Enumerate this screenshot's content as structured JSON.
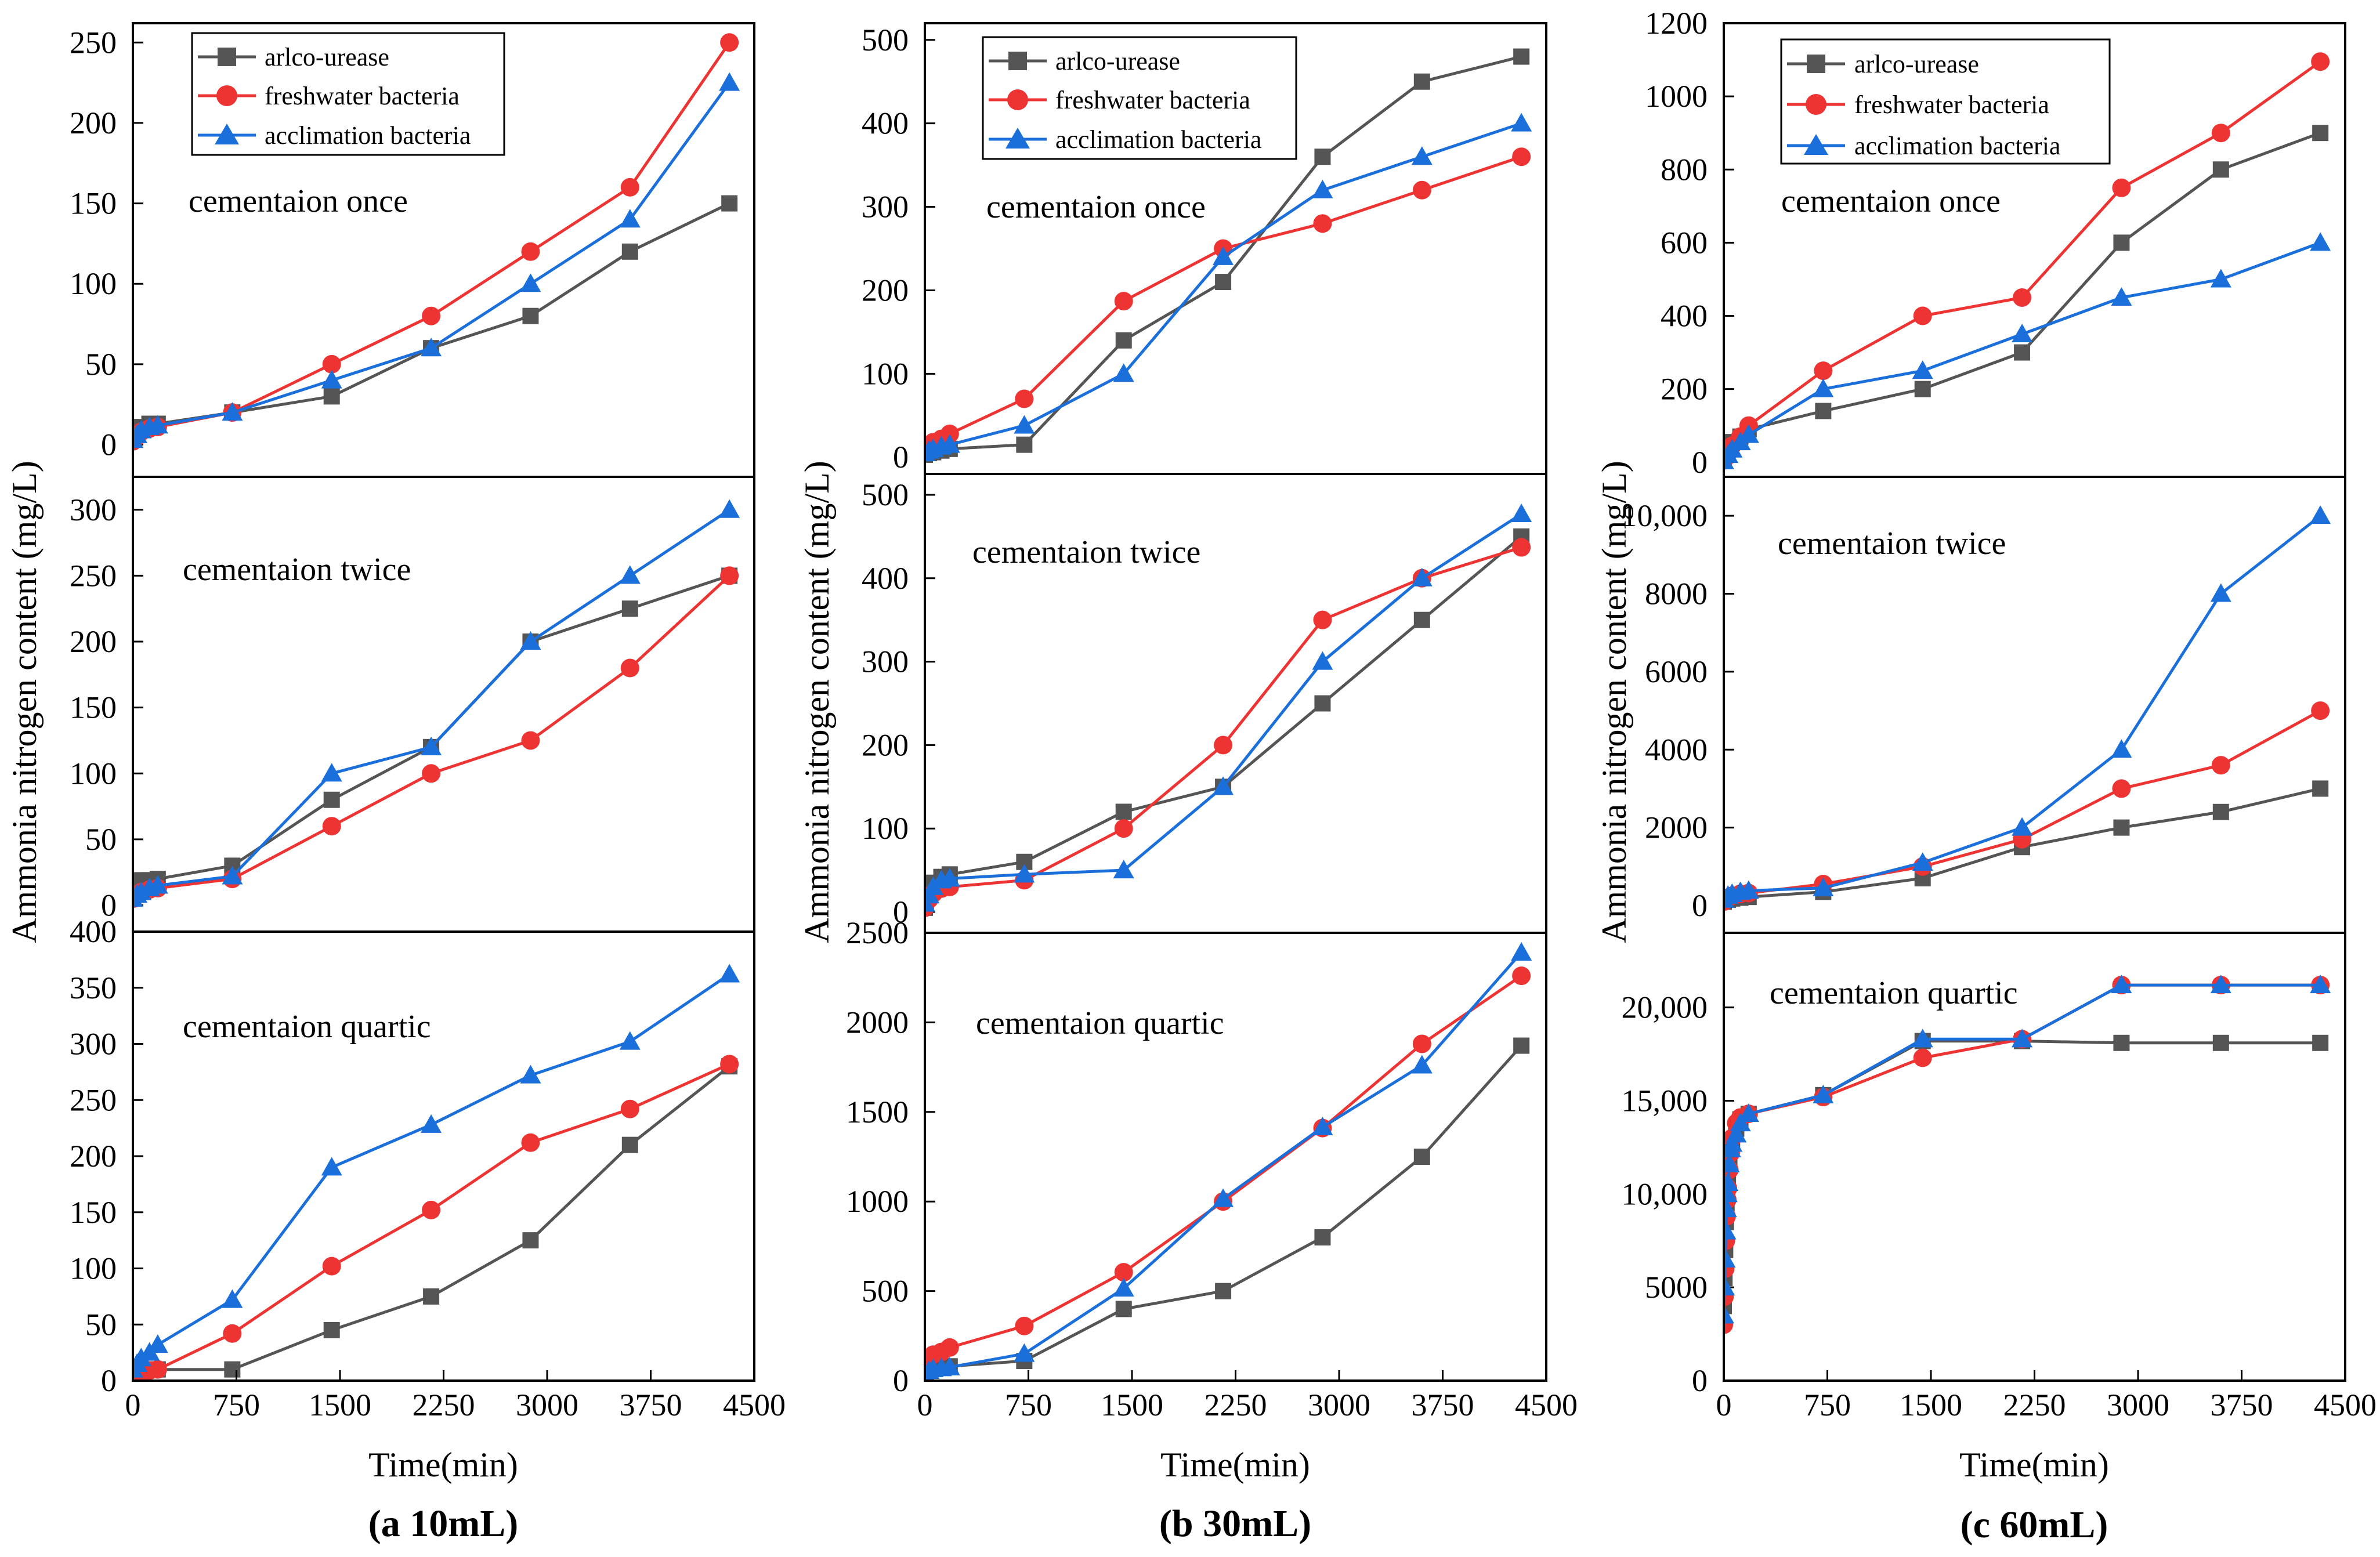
{
  "ylabel": "Ammonia nitrogen content (mg/L)",
  "xlabel": "Time(min)",
  "colors": {
    "arlco": "#555555",
    "fresh": "#ee3333",
    "accl": "#1a6fdb"
  },
  "legend": [
    "arlco-urease",
    "freshwater bacteria",
    "acclimation bacteria"
  ],
  "chart_data": [
    {
      "type": "line",
      "caption": "(a 10mL)",
      "x_ticks": [
        "0",
        "750",
        "1500",
        "2250",
        "3000",
        "3750",
        "4500"
      ],
      "xlim": [
        0,
        4500
      ],
      "subplots": [
        {
          "label": "cementaion once",
          "ylim": [
            -20,
            262
          ],
          "y_ticks": [
            "0",
            "50",
            "100",
            "150",
            "200",
            "250"
          ],
          "x": [
            0,
            30,
            60,
            120,
            180,
            720,
            1440,
            2160,
            2880,
            3600,
            4320
          ],
          "series": [
            {
              "name": "arlco-urease",
              "values": [
                5,
                9,
                11,
                13,
                13,
                20,
                30,
                60,
                80,
                120,
                150
              ]
            },
            {
              "name": "freshwater bacteria",
              "values": [
                2,
                5,
                8,
                10,
                11,
                20,
                50,
                80,
                120,
                160,
                250
              ]
            },
            {
              "name": "acclimation bacteria",
              "values": [
                3,
                6,
                9,
                11,
                12,
                20,
                40,
                60,
                100,
                140,
                225
              ]
            }
          ]
        },
        {
          "label": "cementaion twice",
          "ylim": [
            -20,
            325
          ],
          "y_ticks": [
            "0",
            "50",
            "100",
            "150",
            "200",
            "250",
            "300"
          ],
          "x": [
            0,
            30,
            60,
            120,
            180,
            720,
            1440,
            2160,
            2880,
            3600,
            4320
          ],
          "series": [
            {
              "name": "arlco-urease",
              "values": [
                18,
                18,
                19,
                19,
                20,
                30,
                80,
                120,
                200,
                225,
                250
              ]
            },
            {
              "name": "freshwater bacteria",
              "values": [
                5,
                8,
                10,
                12,
                13,
                20,
                60,
                100,
                125,
                180,
                250
              ]
            },
            {
              "name": "acclimation bacteria",
              "values": [
                5,
                8,
                10,
                13,
                15,
                22,
                100,
                120,
                200,
                250,
                300
              ]
            }
          ]
        },
        {
          "label": "cementaion quartic",
          "ylim": [
            0,
            400
          ],
          "y_ticks": [
            "0",
            "50",
            "100",
            "150",
            "200",
            "250",
            "300",
            "350",
            "400"
          ],
          "x": [
            0,
            30,
            60,
            120,
            180,
            720,
            1440,
            2160,
            2880,
            3600,
            4320
          ],
          "series": [
            {
              "name": "arlco-urease",
              "values": [
                10,
                10,
                10,
                10,
                10,
                10,
                45,
                75,
                125,
                210,
                280
              ]
            },
            {
              "name": "freshwater bacteria",
              "values": [
                5,
                7,
                8,
                9,
                10,
                42,
                102,
                152,
                212,
                242,
                282
              ]
            },
            {
              "name": "acclimation bacteria",
              "values": [
                10,
                15,
                20,
                25,
                32,
                72,
                190,
                228,
                272,
                302,
                362
              ]
            }
          ]
        }
      ]
    },
    {
      "type": "line",
      "caption": "(b 30mL)",
      "x_ticks": [
        "0",
        "750",
        "1500",
        "2250",
        "3000",
        "3750",
        "4500"
      ],
      "xlim": [
        0,
        4500
      ],
      "subplots": [
        {
          "label": "cementaion once",
          "ylim": [
            -20,
            520
          ],
          "y_ticks": [
            "0",
            "100",
            "200",
            "300",
            "400",
            "500"
          ],
          "x": [
            0,
            30,
            60,
            120,
            180,
            720,
            1440,
            2160,
            2880,
            3600,
            4320
          ],
          "series": [
            {
              "name": "arlco-urease",
              "values": [
                3,
                5,
                6,
                8,
                10,
                15,
                140,
                210,
                360,
                450,
                480
              ]
            },
            {
              "name": "freshwater bacteria",
              "values": [
                10,
                15,
                18,
                22,
                28,
                70,
                187,
                250,
                280,
                320,
                360
              ]
            },
            {
              "name": "acclimation bacteria",
              "values": [
                5,
                8,
                10,
                13,
                15,
                38,
                100,
                240,
                320,
                360,
                400
              ]
            }
          ]
        },
        {
          "label": "cementaion twice",
          "ylim": [
            -25,
            525
          ],
          "y_ticks": [
            "0",
            "100",
            "200",
            "300",
            "400",
            "500"
          ],
          "x": [
            0,
            30,
            60,
            120,
            180,
            720,
            1440,
            2160,
            2880,
            3600,
            4320
          ],
          "series": [
            {
              "name": "arlco-urease",
              "values": [
                5,
                25,
                35,
                42,
                45,
                60,
                120,
                150,
                250,
                350,
                450
              ]
            },
            {
              "name": "freshwater bacteria",
              "values": [
                5,
                15,
                22,
                28,
                30,
                38,
                100,
                200,
                350,
                400,
                437
              ]
            },
            {
              "name": "acclimation bacteria",
              "values": [
                10,
                20,
                30,
                38,
                40,
                45,
                50,
                150,
                300,
                400,
                477
              ]
            }
          ]
        },
        {
          "label": "cementaion quartic",
          "ylim": [
            0,
            2500
          ],
          "y_ticks": [
            "0",
            "500",
            "1000",
            "1500",
            "2000",
            "2500"
          ],
          "x": [
            0,
            30,
            60,
            120,
            180,
            720,
            1440,
            2160,
            2880,
            3600,
            4320
          ],
          "series": [
            {
              "name": "arlco-urease",
              "values": [
                60,
                65,
                70,
                75,
                80,
                110,
                400,
                500,
                800,
                1250,
                1870
              ]
            },
            {
              "name": "freshwater bacteria",
              "values": [
                90,
                130,
                145,
                160,
                185,
                305,
                605,
                1000,
                1410,
                1880,
                2260
              ]
            },
            {
              "name": "acclimation bacteria",
              "values": [
                40,
                55,
                65,
                70,
                75,
                150,
                515,
                1015,
                1415,
                1760,
                2390
              ]
            }
          ]
        }
      ]
    },
    {
      "type": "line",
      "caption": "(c 60mL)",
      "x_ticks": [
        "0",
        "750",
        "1500",
        "2250",
        "3000",
        "3750",
        "4500"
      ],
      "xlim": [
        0,
        4500
      ],
      "subplots": [
        {
          "label": "cementaion once",
          "ylim": [
            -40,
            1200
          ],
          "y_ticks": [
            "0",
            "200",
            "400",
            "600",
            "800",
            "1000",
            "1200"
          ],
          "x": [
            0,
            30,
            60,
            120,
            180,
            720,
            1440,
            2160,
            2880,
            3600,
            4320
          ],
          "series": [
            {
              "name": "arlco-urease",
              "values": [
                15,
                40,
                55,
                70,
                90,
                140,
                200,
                300,
                600,
                800,
                900
              ]
            },
            {
              "name": "freshwater bacteria",
              "values": [
                5,
                25,
                45,
                70,
                100,
                250,
                400,
                450,
                750,
                900,
                1095
              ]
            },
            {
              "name": "acclimation bacteria",
              "values": [
                3,
                20,
                35,
                55,
                75,
                200,
                250,
                350,
                450,
                500,
                600
              ]
            }
          ]
        },
        {
          "label": "cementaion twice",
          "ylim": [
            -700,
            11000
          ],
          "y_ticks": [
            "0",
            "2000",
            "4000",
            "6000",
            "8000",
            "10,000"
          ],
          "x": [
            0,
            30,
            60,
            120,
            180,
            720,
            1440,
            2160,
            2880,
            3600,
            4320
          ],
          "series": [
            {
              "name": "arlco-urease",
              "values": [
                100,
                150,
                180,
                200,
                220,
                350,
                700,
                1500,
                2000,
                2400,
                3000
              ]
            },
            {
              "name": "freshwater bacteria",
              "values": [
                100,
                200,
                250,
                300,
                320,
                550,
                1000,
                1700,
                3000,
                3600,
                5000
              ]
            },
            {
              "name": "acclimation bacteria",
              "values": [
                150,
                250,
                300,
                350,
                380,
                450,
                1100,
                2000,
                4000,
                8000,
                10000
              ]
            }
          ]
        },
        {
          "label": "cementaion quartic",
          "ylim": [
            0,
            24000
          ],
          "y_ticks": [
            "0",
            "5000",
            "10,000",
            "15,000",
            "20,000"
          ],
          "x": [
            0,
            5,
            10,
            15,
            20,
            25,
            30,
            40,
            50,
            60,
            90,
            120,
            180,
            720,
            1440,
            2160,
            2880,
            3600,
            4320
          ],
          "series": [
            {
              "name": "arlco-urease",
              "values": [
                4000,
                5500,
                7000,
                8500,
                9500,
                10200,
                10800,
                11800,
                12500,
                12900,
                13500,
                14000,
                14300,
                15300,
                18200,
                18200,
                18100,
                18100,
                18100
              ]
            },
            {
              "name": "freshwater bacteria",
              "values": [
                3000,
                4500,
                6000,
                7500,
                8800,
                9700,
                10300,
                11300,
                12200,
                13000,
                13800,
                14100,
                14300,
                15200,
                17300,
                18300,
                21200,
                21200,
                21200
              ]
            },
            {
              "name": "acclimation bacteria",
              "values": [
                3500,
                5000,
                6500,
                8000,
                9200,
                10000,
                10600,
                11600,
                12400,
                12700,
                13200,
                13800,
                14300,
                15300,
                18300,
                18300,
                21200,
                21200,
                21200
              ]
            }
          ]
        }
      ]
    }
  ]
}
